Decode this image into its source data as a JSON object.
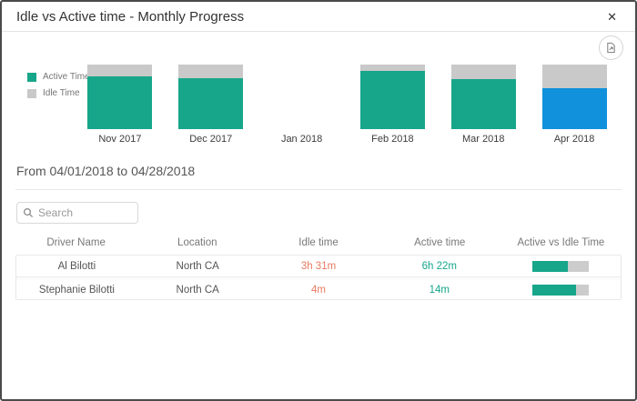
{
  "dialog": {
    "title": "Idle vs Active time - Monthly Progress",
    "close_glyph": "✕"
  },
  "chart_data": {
    "type": "bar",
    "subtype": "percent-stacked-column",
    "categories": [
      "Nov 2017",
      "Dec 2017",
      "Jan 2018",
      "Feb 2018",
      "Mar 2018",
      "Apr 2018"
    ],
    "series": [
      {
        "name": "Active Time",
        "color": "#17a68a",
        "values": [
          82,
          79,
          null,
          90,
          77,
          63
        ]
      },
      {
        "name": "Idle Time",
        "color": "#c9c9c9",
        "values": [
          18,
          21,
          null,
          10,
          23,
          37
        ]
      }
    ],
    "selected_category": "Apr 2018",
    "selected_color": "#1191dc",
    "legend_position": "left",
    "axes_hidden": true,
    "title": "",
    "xlabel": "",
    "ylabel": ""
  },
  "period": {
    "label": "From 04/01/2018 to 04/28/2018"
  },
  "search": {
    "placeholder": "Search"
  },
  "table": {
    "columns": [
      "Driver Name",
      "Location",
      "Idle time",
      "Active time",
      "Active vs Idle Time"
    ],
    "rows": [
      {
        "driver_name": "Al Bilotti",
        "location": "North CA",
        "idle_time": "3h 31m",
        "active_time": "6h 22m",
        "active_pct": 64
      },
      {
        "driver_name": "Stephanie Bilotti",
        "location": "North CA",
        "idle_time": "4m",
        "active_time": "14m",
        "active_pct": 78
      }
    ],
    "colors": {
      "idle_text": "#e8795f",
      "active_text": "#17a68a",
      "ratio_fill": "#17a68a",
      "ratio_track": "#cccccc"
    }
  }
}
